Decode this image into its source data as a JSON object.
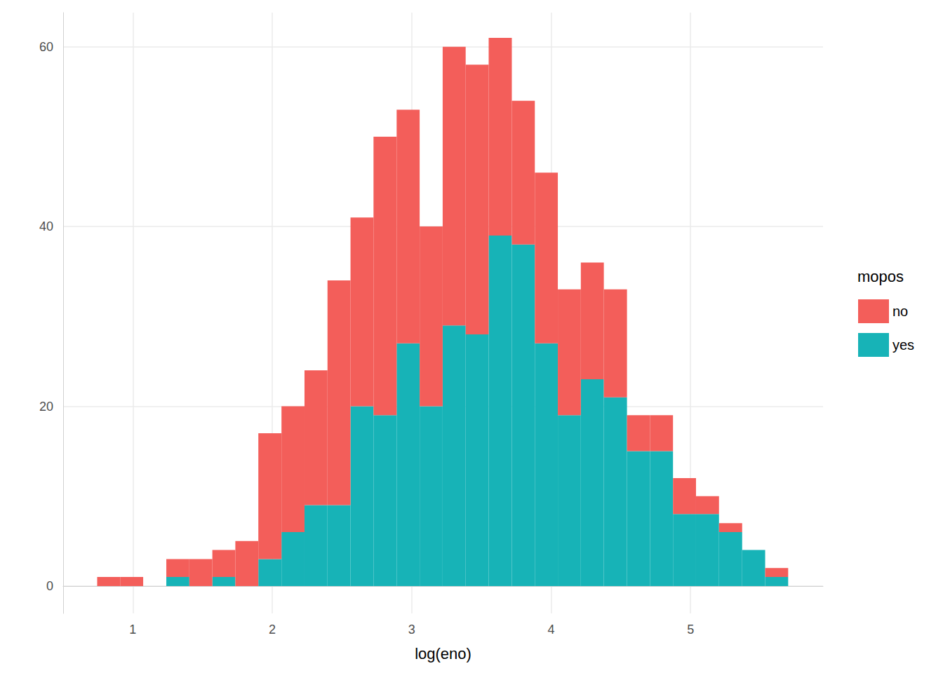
{
  "chart_data": {
    "type": "histogram",
    "x_label": "log(eno)",
    "legend_title": "mopos",
    "bins": [
      0.744,
      0.909,
      1.074,
      1.24,
      1.405,
      1.57,
      1.735,
      1.9,
      2.066,
      2.231,
      2.396,
      2.561,
      2.726,
      2.892,
      3.057,
      3.222,
      3.387,
      3.552,
      3.718,
      3.883,
      4.048,
      4.213,
      4.378,
      4.544,
      4.709,
      4.874,
      5.039,
      5.204,
      5.37,
      5.535,
      5.7
    ],
    "series": [
      {
        "name": "no",
        "color": "#f35e5a",
        "values": [
          1,
          1,
          0,
          2,
          3,
          3,
          5,
          14,
          14,
          15,
          25,
          21,
          31,
          26,
          20,
          31,
          30,
          22,
          16,
          19,
          14,
          13,
          12,
          4,
          4,
          4,
          2,
          1,
          0,
          1
        ]
      },
      {
        "name": "yes",
        "color": "#17b3b7",
        "values": [
          0,
          0,
          0,
          1,
          0,
          1,
          0,
          3,
          6,
          9,
          9,
          20,
          19,
          27,
          20,
          29,
          28,
          39,
          38,
          27,
          19,
          23,
          21,
          15,
          15,
          8,
          8,
          6,
          4,
          1
        ]
      }
    ],
    "stacked": true,
    "xlim": [
      0.5,
      5.95
    ],
    "xticks": [
      1,
      2,
      3,
      4,
      5
    ],
    "ylim": [
      -3.05,
      63.8
    ],
    "yticks": [
      0,
      20,
      40,
      60
    ],
    "grid": true,
    "legend": "right"
  }
}
